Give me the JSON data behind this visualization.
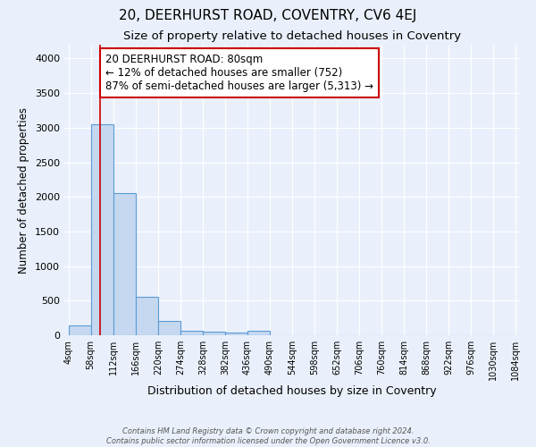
{
  "title": "20, DEERHURST ROAD, COVENTRY, CV6 4EJ",
  "subtitle": "Size of property relative to detached houses in Coventry",
  "xlabel": "Distribution of detached houses by size in Coventry",
  "ylabel": "Number of detached properties",
  "bin_edges": [
    4,
    58,
    112,
    166,
    220,
    274,
    328,
    382,
    436,
    490,
    544,
    598,
    652,
    706,
    760,
    814,
    868,
    922,
    976,
    1030,
    1084
  ],
  "bar_heights": [
    140,
    3050,
    2060,
    550,
    210,
    70,
    50,
    45,
    70,
    0,
    0,
    0,
    0,
    0,
    0,
    0,
    0,
    0,
    0,
    0
  ],
  "bar_color": "#c5d8f0",
  "bar_edge_color": "#5b9bd5",
  "bar_linewidth": 0.8,
  "bg_color": "#eaf0fb",
  "grid_color": "#ffffff",
  "property_size": 80,
  "red_line_color": "#cc0000",
  "annotation_line1": "20 DEERHURST ROAD: 80sqm",
  "annotation_line2": "← 12% of detached houses are smaller (752)",
  "annotation_line3": "87% of semi-detached houses are larger (5,313) →",
  "annotation_box_color": "#ffffff",
  "annotation_box_edge": "#cc0000",
  "ylim": [
    0,
    4200
  ],
  "yticks": [
    0,
    500,
    1000,
    1500,
    2000,
    2500,
    3000,
    3500,
    4000
  ],
  "footer_line1": "Contains HM Land Registry data © Crown copyright and database right 2024.",
  "footer_line2": "Contains public sector information licensed under the Open Government Licence v3.0.",
  "title_fontsize": 11,
  "subtitle_fontsize": 9.5,
  "tick_label_fontsize": 7,
  "ylabel_fontsize": 8.5,
  "xlabel_fontsize": 9,
  "annotation_fontsize": 8.5
}
